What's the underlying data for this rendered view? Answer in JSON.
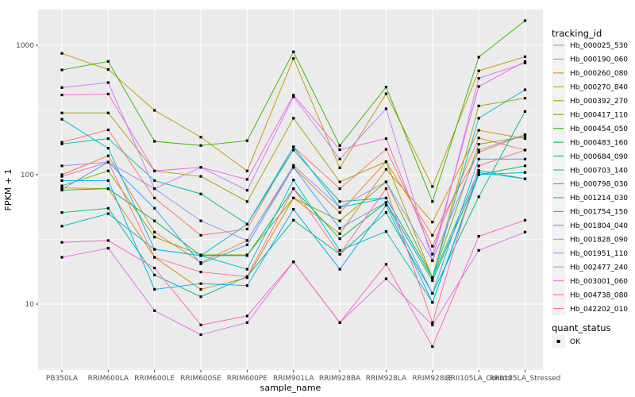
{
  "chart_data": {
    "type": "line",
    "title": "",
    "xlabel": "sample_name",
    "ylabel": "FPKM + 1",
    "y_scale": "log10",
    "y_ticks": [
      10,
      100,
      1000
    ],
    "y_minor_ticks": [
      3.162,
      31.62,
      316.23
    ],
    "categories": [
      "PB350LA",
      "RRIM600LA",
      "RRIM600LE",
      "RRIM600SE",
      "RRIM600PE",
      "RRIM901LA",
      "RRIM928BA",
      "RRIM928LA",
      "RRIM928LE",
      "RRII105LA_Control",
      "RRII105LA_Stressed"
    ],
    "legend": {
      "title": "tracking_id",
      "position": "right"
    },
    "legend2": {
      "title": "quant_status",
      "items": [
        {
          "label": "OK",
          "marker": "black-square"
        }
      ]
    },
    "grid": true,
    "panel_bg": "#EBEBEB",
    "grid_color": "#FFFFFF",
    "axis_text_color": "#4D4D4D",
    "tick_color": "#333333",
    "point_color": "#000000",
    "legend_key_bg": "#F2F2F2",
    "series": [
      {
        "name": "Hb_000025_530",
        "color": "#F8766D",
        "values": [
          178,
          222,
          66,
          34,
          38,
          164,
          78,
          157,
          28,
          192,
          155
        ]
      },
      {
        "name": "Hb_000190_060",
        "color": "#EA8331",
        "values": [
          100,
          140,
          36,
          21,
          31,
          114,
          51,
          126,
          34,
          149,
          204
        ]
      },
      {
        "name": "Hb_000260_080",
        "color": "#D89000",
        "values": [
          79,
          78,
          23,
          13,
          16,
          66,
          35,
          110,
          43,
          220,
          190
        ]
      },
      {
        "name": "Hb_000270_840",
        "color": "#C09B00",
        "values": [
          865,
          650,
          314,
          195,
          107,
          790,
          113,
          422,
          81,
          635,
          815
        ]
      },
      {
        "name": "Hb_000392_270",
        "color": "#A3A500",
        "values": [
          300,
          300,
          107,
          97,
          62,
          273,
          88,
          126,
          16,
          340,
          390
        ]
      },
      {
        "name": "Hb_000417_110",
        "color": "#7CAE00",
        "values": [
          82,
          107,
          33,
          24,
          24,
          66,
          44,
          88,
          16,
          172,
          197
        ]
      },
      {
        "name": "Hb_000454_050",
        "color": "#39B600",
        "values": [
          645,
          750,
          181,
          168,
          183,
          890,
          168,
          475,
          62,
          810,
          1550
        ]
      },
      {
        "name": "Hb_000483_160",
        "color": "#00BB4E",
        "values": [
          76,
          78,
          44,
          23.7,
          23.7,
          78,
          32,
          61,
          15.2,
          100,
          117
        ]
      },
      {
        "name": "Hb_000684_090",
        "color": "#00BF7D",
        "values": [
          51,
          55,
          16.8,
          11.4,
          16.3,
          44.5,
          24.3,
          51,
          12.1,
          67.5,
          308
        ]
      },
      {
        "name": "Hb_000703_140",
        "color": "#00C1A3",
        "values": [
          173,
          190,
          90,
          71,
          41.5,
          155,
          62,
          66,
          16,
          108,
          93
        ]
      },
      {
        "name": "Hb_000798_030",
        "color": "#00BFC4",
        "values": [
          40,
          50,
          26.5,
          23.7,
          18.6,
          91,
          26,
          36.4,
          10.3,
          104,
          93
        ]
      },
      {
        "name": "Hb_001214_030",
        "color": "#00BAE0",
        "values": [
          268,
          160,
          26.5,
          23.7,
          41.5,
          164,
          56,
          66,
          16,
          273,
          453
        ]
      },
      {
        "name": "Hb_001754_150",
        "color": "#00B0F6",
        "values": [
          90,
          90,
          13,
          14.4,
          13.9,
          54,
          18.6,
          58,
          10.3,
          100,
          104
        ]
      },
      {
        "name": "Hb_001804_040",
        "color": "#35A2FF",
        "values": [
          77,
          125,
          55,
          20.5,
          28.7,
          114,
          38.5,
          61,
          12.1,
          132,
          132
        ]
      },
      {
        "name": "Hb_001828_090",
        "color": "#9590FF",
        "values": [
          117,
          125,
          78,
          44,
          31,
          118,
          56,
          88,
          21.7,
          155,
          204
        ]
      },
      {
        "name": "Hb_001951_110",
        "color": "#C77CFF",
        "values": [
          471,
          515,
          78,
          114,
          75.7,
          400,
          132,
          323,
          21.7,
          555,
          730
        ]
      },
      {
        "name": "Hb_002477_240",
        "color": "#E76BF3",
        "values": [
          23,
          27,
          8.9,
          5.8,
          7.2,
          21.2,
          7.2,
          15.7,
          6.9,
          26,
          36
        ]
      },
      {
        "name": "Hb_003001_060",
        "color": "#FA62DB",
        "values": [
          413,
          420,
          107,
          114,
          92,
          412,
          156,
          190,
          24.3,
          480,
          750
        ]
      },
      {
        "name": "Hb_004738_080",
        "color": "#FF62BC",
        "values": [
          30,
          31,
          19,
          6.9,
          8.1,
          21.2,
          7.2,
          20.3,
          4.7,
          33.4,
          44.5
        ]
      },
      {
        "name": "Hb_042202_010",
        "color": "#FF6A98",
        "values": [
          97,
          125,
          23,
          17.7,
          16.3,
          78,
          24.3,
          78,
          7.2,
          117,
          155
        ]
      }
    ]
  }
}
